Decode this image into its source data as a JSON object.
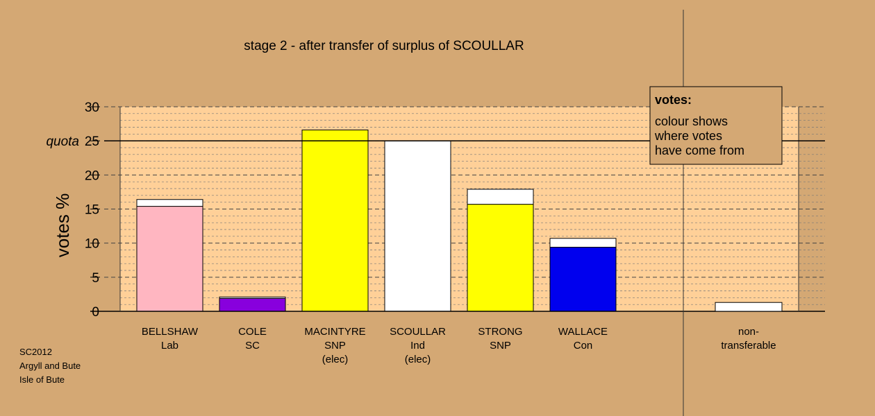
{
  "chart_data": {
    "type": "bar",
    "title": "stage 2 - after transfer of surplus of SCOULLAR",
    "ylabel": "votes %",
    "ylim": [
      0,
      30
    ],
    "yticks": [
      0,
      5,
      10,
      15,
      20,
      25,
      30
    ],
    "quota": {
      "value": 25,
      "label": "quota"
    },
    "categories": [
      {
        "name": "BELLSHAW",
        "party": "Lab",
        "note": ""
      },
      {
        "name": "COLE",
        "party": "SC",
        "note": ""
      },
      {
        "name": "MACINTYRE",
        "party": "SNP",
        "note": "(elec)"
      },
      {
        "name": "SCOULLAR",
        "party": "Ind",
        "note": "(elec)"
      },
      {
        "name": "STRONG",
        "party": "SNP",
        "note": ""
      },
      {
        "name": "WALLACE",
        "party": "Con",
        "note": ""
      }
    ],
    "bars": [
      {
        "base": 15.4,
        "base_color": "#ffb6c1",
        "transfer": 1.0
      },
      {
        "base": 1.9,
        "base_color": "#8800dd",
        "transfer": 0.2
      },
      {
        "base": 26.6,
        "base_color": "#ffff00",
        "transfer": 0
      },
      {
        "base": 25.0,
        "base_color": "#ffffff",
        "transfer": 0
      },
      {
        "base": 15.7,
        "base_color": "#ffff00",
        "transfer": 2.2
      },
      {
        "base": 9.4,
        "base_color": "#0000ee",
        "transfer": 1.3
      }
    ],
    "transfer_color": "#ffffff",
    "nontransferable": {
      "label_line1": "non-",
      "label_line2": "transferable",
      "value": 1.3
    },
    "legend": {
      "title": "votes:",
      "lines": [
        "colour shows",
        "where votes",
        "have come from"
      ],
      "position": "top-right"
    },
    "colors": {
      "background": "#d4a874",
      "plot_background": "#ffd098"
    }
  },
  "footer": {
    "lines": [
      "SC2012",
      "Argyll and Bute",
      "Isle of Bute"
    ]
  }
}
